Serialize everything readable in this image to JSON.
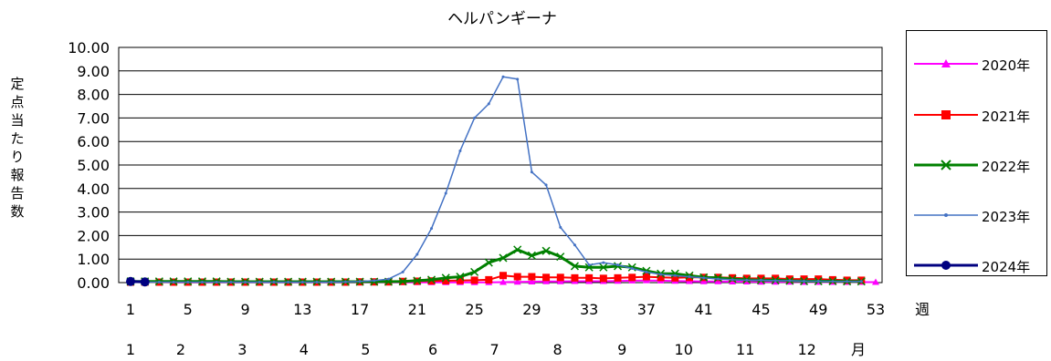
{
  "chart_data": {
    "type": "line",
    "title": "ヘルパンギーナ",
    "ylabel": "定点当たり報告数",
    "xlabel_unit": "週",
    "month_unit": "月",
    "ylim": [
      0,
      10
    ],
    "y_ticks": [
      "0.00",
      "1.00",
      "2.00",
      "3.00",
      "4.00",
      "5.00",
      "6.00",
      "7.00",
      "8.00",
      "9.00",
      "10.00"
    ],
    "x_ticks": [
      1,
      5,
      9,
      13,
      17,
      21,
      25,
      29,
      33,
      37,
      41,
      45,
      49,
      53
    ],
    "month_labels": [
      {
        "label": "1",
        "week": 1
      },
      {
        "label": "2",
        "week": 4.5
      },
      {
        "label": "3",
        "week": 8.8
      },
      {
        "label": "4",
        "week": 13.1
      },
      {
        "label": "5",
        "week": 17.4
      },
      {
        "label": "6",
        "week": 22.1
      },
      {
        "label": "7",
        "week": 26.4
      },
      {
        "label": "8",
        "week": 30.8
      },
      {
        "label": "9",
        "week": 35.3
      },
      {
        "label": "10",
        "week": 39.6
      },
      {
        "label": "11",
        "week": 43.9
      },
      {
        "label": "12",
        "week": 48.2
      }
    ],
    "grid": "horizontal",
    "legend_position": "right",
    "series": [
      {
        "name": "2020年",
        "color": "#ff00ff",
        "marker": "triangle",
        "width": 2,
        "x": [
          1,
          2,
          3,
          4,
          5,
          6,
          7,
          8,
          9,
          10,
          11,
          12,
          13,
          14,
          15,
          16,
          17,
          18,
          19,
          20,
          21,
          22,
          23,
          24,
          25,
          26,
          27,
          28,
          29,
          30,
          31,
          32,
          33,
          34,
          35,
          36,
          37,
          38,
          39,
          40,
          41,
          42,
          43,
          44,
          45,
          46,
          47,
          48,
          49,
          50,
          51,
          52,
          53
        ],
        "values": [
          0.02,
          0.02,
          0.02,
          0.01,
          0.01,
          0.01,
          0.01,
          0.01,
          0.01,
          0.01,
          0.01,
          0.01,
          0.01,
          0.01,
          0.01,
          0.01,
          0.01,
          0.01,
          0.01,
          0.01,
          0.01,
          0.01,
          0.01,
          0.01,
          0.01,
          0.01,
          0.02,
          0.03,
          0.04,
          0.05,
          0.05,
          0.06,
          0.06,
          0.06,
          0.07,
          0.08,
          0.09,
          0.08,
          0.07,
          0.06,
          0.05,
          0.05,
          0.04,
          0.04,
          0.03,
          0.03,
          0.03,
          0.02,
          0.02,
          0.02,
          0.02,
          0.02,
          0.02
        ]
      },
      {
        "name": "2021年",
        "color": "#ff0000",
        "marker": "square",
        "width": 2,
        "x": [
          1,
          2,
          3,
          4,
          5,
          6,
          7,
          8,
          9,
          10,
          11,
          12,
          13,
          14,
          15,
          16,
          17,
          18,
          19,
          20,
          21,
          22,
          23,
          24,
          25,
          26,
          27,
          28,
          29,
          30,
          31,
          32,
          33,
          34,
          35,
          36,
          37,
          38,
          39,
          40,
          41,
          42,
          43,
          44,
          45,
          46,
          47,
          48,
          49,
          50,
          51,
          52
        ],
        "values": [
          0.02,
          0.02,
          0.02,
          0.02,
          0.02,
          0.02,
          0.02,
          0.02,
          0.02,
          0.02,
          0.02,
          0.02,
          0.02,
          0.02,
          0.02,
          0.02,
          0.03,
          0.03,
          0.03,
          0.05,
          0.06,
          0.07,
          0.08,
          0.09,
          0.1,
          0.12,
          0.3,
          0.25,
          0.25,
          0.22,
          0.22,
          0.2,
          0.2,
          0.18,
          0.2,
          0.22,
          0.25,
          0.22,
          0.2,
          0.22,
          0.22,
          0.22,
          0.2,
          0.18,
          0.18,
          0.18,
          0.15,
          0.15,
          0.15,
          0.12,
          0.1,
          0.1
        ]
      },
      {
        "name": "2022年",
        "color": "#008000",
        "marker": "x",
        "width": 3,
        "x": [
          1,
          2,
          3,
          4,
          5,
          6,
          7,
          8,
          9,
          10,
          11,
          12,
          13,
          14,
          15,
          16,
          17,
          18,
          19,
          20,
          21,
          22,
          23,
          24,
          25,
          26,
          27,
          28,
          29,
          30,
          31,
          32,
          33,
          34,
          35,
          36,
          37,
          38,
          39,
          40,
          41,
          42,
          43,
          44,
          45,
          46,
          47,
          48,
          49,
          50,
          51,
          52
        ],
        "values": [
          0.05,
          0.05,
          0.05,
          0.05,
          0.05,
          0.05,
          0.05,
          0.04,
          0.04,
          0.04,
          0.04,
          0.04,
          0.04,
          0.04,
          0.04,
          0.04,
          0.04,
          0.04,
          0.04,
          0.05,
          0.08,
          0.12,
          0.2,
          0.25,
          0.45,
          0.85,
          1.05,
          1.4,
          1.15,
          1.35,
          1.1,
          0.7,
          0.65,
          0.65,
          0.7,
          0.65,
          0.5,
          0.38,
          0.38,
          0.3,
          0.22,
          0.2,
          0.15,
          0.12,
          0.1,
          0.1,
          0.08,
          0.06,
          0.06,
          0.06,
          0.05,
          0.05
        ]
      },
      {
        "name": "2023年",
        "color": "#4472c4",
        "marker": "dot",
        "width": 1.5,
        "x": [
          1,
          2,
          3,
          4,
          5,
          6,
          7,
          8,
          9,
          10,
          11,
          12,
          13,
          14,
          15,
          16,
          17,
          18,
          19,
          20,
          21,
          22,
          23,
          24,
          25,
          26,
          27,
          28,
          29,
          30,
          31,
          32,
          33,
          34,
          35,
          36,
          37,
          38,
          39,
          40,
          41,
          42,
          43,
          44,
          45,
          46,
          47,
          48,
          49,
          50,
          51,
          52
        ],
        "values": [
          0.02,
          0.02,
          0.02,
          0.02,
          0.02,
          0.02,
          0.02,
          0.02,
          0.02,
          0.02,
          0.02,
          0.02,
          0.02,
          0.02,
          0.02,
          0.03,
          0.05,
          0.08,
          0.15,
          0.45,
          1.2,
          2.3,
          3.8,
          5.6,
          7.0,
          7.6,
          8.75,
          8.65,
          4.7,
          4.15,
          2.35,
          1.6,
          0.75,
          0.85,
          0.75,
          0.6,
          0.45,
          0.35,
          0.3,
          0.25,
          0.2,
          0.15,
          0.12,
          0.1,
          0.1,
          0.08,
          0.08,
          0.06,
          0.06,
          0.05,
          0.05,
          0.05
        ]
      },
      {
        "name": "2024年",
        "color": "#000080",
        "marker": "circle",
        "width": 3,
        "x": [
          1,
          2
        ],
        "values": [
          0.05,
          0.03
        ]
      }
    ]
  }
}
